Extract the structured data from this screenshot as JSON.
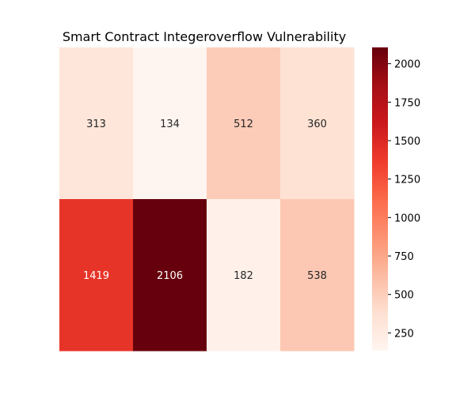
{
  "chart_data": {
    "type": "heatmap",
    "title": "Smart Contract Integeroverflow Vulnerability",
    "xlabel": "",
    "ylabel": "",
    "rows": 2,
    "cols": 4,
    "values": [
      [
        313,
        134,
        512,
        360
      ],
      [
        1419,
        2106,
        182,
        538
      ]
    ],
    "color_range": [
      134,
      2106
    ],
    "colormap": "Reds",
    "colorbar": {
      "ticks": [
        250,
        500,
        750,
        1000,
        1250,
        1500,
        1750,
        2000
      ],
      "tick_labels": [
        "250",
        "500",
        "750",
        "1000",
        "1250",
        "1500",
        "1750",
        "2000"
      ]
    },
    "show_axis_ticks": false,
    "grid": false
  }
}
